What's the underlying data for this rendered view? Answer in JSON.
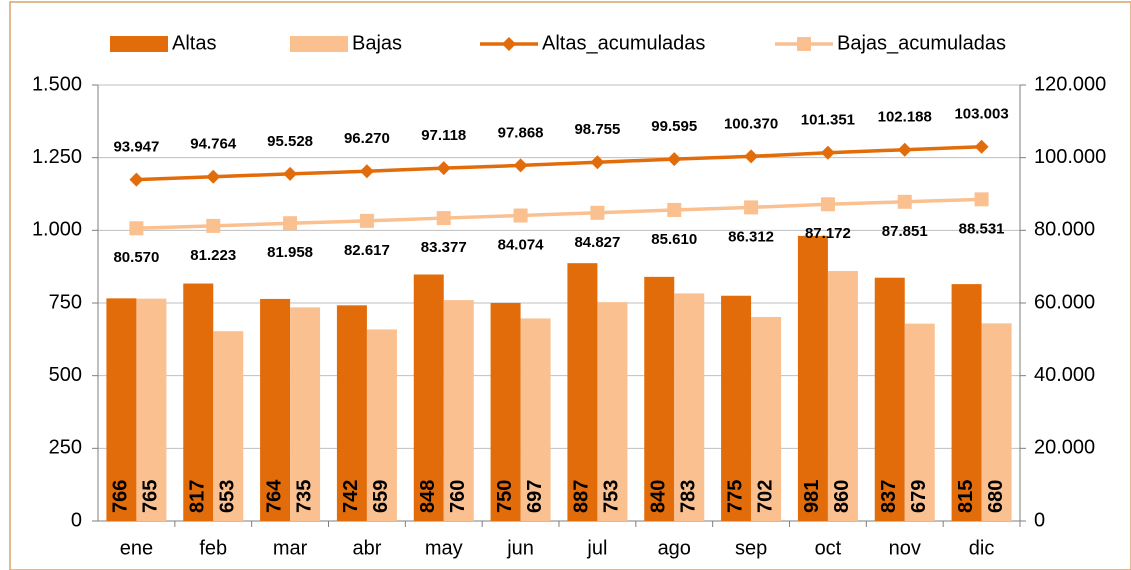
{
  "chart_data": {
    "type": "bar_line",
    "categories": [
      "ene",
      "feb",
      "mar",
      "abr",
      "may",
      "jun",
      "jul",
      "ago",
      "sep",
      "oct",
      "nov",
      "dic"
    ],
    "series": [
      {
        "name": "Altas",
        "type": "bar",
        "color": "#e36c0a",
        "values": [
          766,
          817,
          764,
          742,
          848,
          750,
          887,
          840,
          775,
          981,
          837,
          815
        ]
      },
      {
        "name": "Bajas",
        "type": "bar",
        "color": "#fac090",
        "values": [
          765,
          653,
          735,
          659,
          760,
          697,
          753,
          783,
          702,
          860,
          679,
          680
        ]
      },
      {
        "name": "Altas_acumuladas",
        "type": "line",
        "axis": "y2",
        "marker": "diamond",
        "color": "#e36c0a",
        "values": [
          93947,
          94764,
          95528,
          96270,
          97118,
          97868,
          98755,
          99595,
          100370,
          101351,
          102188,
          103003
        ],
        "value_labels": [
          "93.947",
          "94.764",
          "95.528",
          "96.270",
          "97.118",
          "97.868",
          "98.755",
          "99.595",
          "100.370",
          "101.351",
          "102.188",
          "103.003"
        ]
      },
      {
        "name": "Bajas_acumuladas",
        "type": "line",
        "axis": "y2",
        "marker": "square",
        "color": "#fac090",
        "values": [
          80570,
          81223,
          81958,
          82617,
          83377,
          84074,
          84827,
          85610,
          86312,
          87172,
          87851,
          88531
        ],
        "value_labels": [
          "80.570",
          "81.223",
          "81.958",
          "82.617",
          "83.377",
          "84.074",
          "84.827",
          "85.610",
          "86.312",
          "87.172",
          "87.851",
          "88.531"
        ]
      }
    ],
    "ylim": [
      0,
      1500
    ],
    "yticks": [
      0,
      250,
      500,
      750,
      {
        "value": 1000,
        "label": "1.000"
      },
      {
        "value": 1250,
        "label": "1.250"
      },
      {
        "value": 1500,
        "label": "1.500"
      }
    ],
    "y2lim": [
      0,
      120000
    ],
    "y2ticks": [
      0,
      {
        "value": 20000,
        "label": "20.000"
      },
      {
        "value": 40000,
        "label": "40.000"
      },
      {
        "value": 60000,
        "label": "60.000"
      },
      {
        "value": 80000,
        "label": "80.000"
      },
      {
        "value": 100000,
        "label": "100.000"
      },
      {
        "value": 120000,
        "label": "120.000"
      }
    ],
    "grid": true,
    "legend": "top"
  }
}
